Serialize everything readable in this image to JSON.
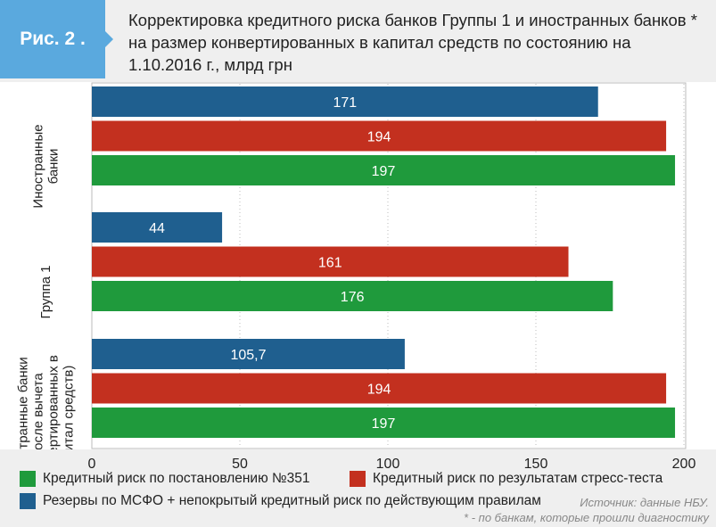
{
  "badge": "Рис. 2 .",
  "title": "Корректировка кредитного риска банков Группы 1 и иностранных банков * на размер конвертированных в капитал средств по состоянию на 1.10.2016 г., млрд грн",
  "source": "Источник: данные НБУ.",
  "footnote": "* - по банкам, которые прошли диагностику",
  "colors": {
    "blue": "#1f5f8f",
    "red": "#c3301f",
    "green": "#1f9a3c",
    "badge": "#5aa9de"
  },
  "chart_data": {
    "type": "bar",
    "orientation": "horizontal",
    "title": "Корректировка кредитного риска банков Группы 1 и иностранных банков * на размер конвертированных в капитал средств по состоянию на 1.10.2016 г., млрд грн",
    "categories": [
      "Иностранные банки",
      "Группа 1",
      "Иностранные банки (После вычета конвертированных в капитал средств)"
    ],
    "category_lines": [
      [
        "Иностранные",
        "банки"
      ],
      [
        "Группа 1"
      ],
      [
        "Иностранные банки",
        "(После вычета",
        "конвертированных в",
        "капитал средств)"
      ]
    ],
    "series": [
      {
        "name": "Резервы по МСФО + непокрытый кредитный риск по действующим правилам",
        "color": "#1f5f8f",
        "values": [
          171,
          44,
          105.7
        ],
        "labels": [
          "171",
          "44",
          "105,7"
        ]
      },
      {
        "name": "Кредитный риск по результатам стресс-теста",
        "color": "#c3301f",
        "values": [
          194,
          161,
          194
        ],
        "labels": [
          "194",
          "161",
          "194"
        ]
      },
      {
        "name": "Кредитный риск по постановлению №351",
        "color": "#1f9a3c",
        "values": [
          197,
          176,
          197
        ],
        "labels": [
          "197",
          "176",
          "197"
        ]
      }
    ],
    "xlim": [
      0,
      200
    ],
    "xticks": [
      "0",
      "50",
      "100",
      "150",
      "200"
    ],
    "grid": true,
    "legend": "bottom"
  }
}
